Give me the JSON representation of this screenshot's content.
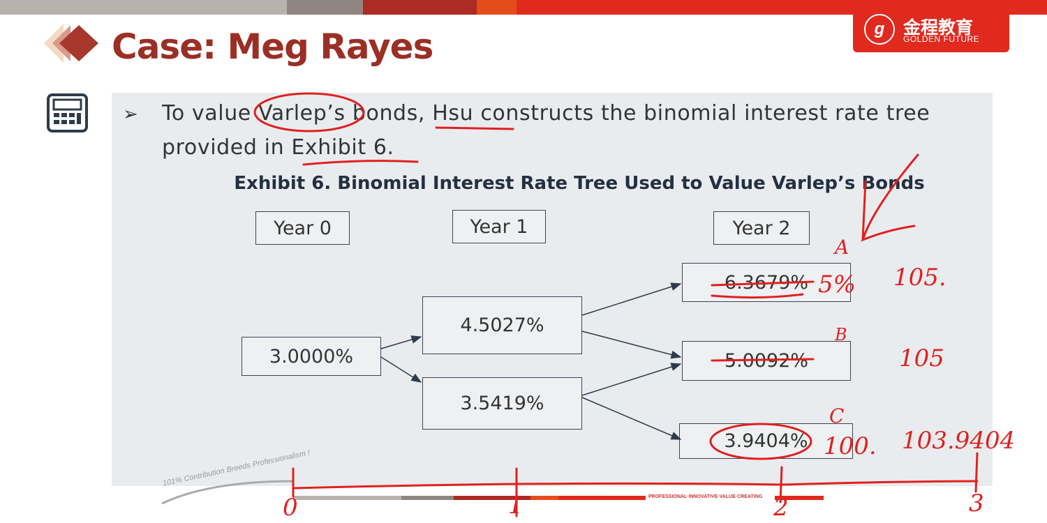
{
  "header": {
    "title": "Case: Meg Rayes",
    "colors": {
      "title": "#9b2f25",
      "accent": "#e12a1e"
    }
  },
  "logo": {
    "cn": "金程教育",
    "en": "GOLDEN FUTURE"
  },
  "content": {
    "calculator_icon": "calculator-icon",
    "bullet_line1": "To value Varlep’s bonds, Hsu constructs the binomial interest rate tree",
    "bullet_line2": "provided in Exhibit 6.",
    "exhibit_title": "Exhibit 6. Binomial Interest Rate Tree Used to Value Varlep’s Bonds"
  },
  "tree": {
    "years": [
      "Year 0",
      "Year 1",
      "Year 2"
    ],
    "year0": "3.0000%",
    "year1": [
      "4.5027%",
      "3.5419%"
    ],
    "year2": [
      "6.3679%",
      "5.0092%",
      "3.9404%"
    ]
  },
  "annotations": {
    "labels": [
      "A",
      "B",
      "C"
    ],
    "a_note": "5%",
    "c_note": "100.",
    "col_values": [
      "105.",
      "105",
      "103.9404"
    ],
    "timeline": [
      "0",
      "1",
      "2",
      "3"
    ]
  },
  "footer": {
    "motto": "101% Contribution Breeds Professionalism !",
    "slogan": "PROFESSIONAL·INNOVATIVE·VALUE·CREATING"
  }
}
